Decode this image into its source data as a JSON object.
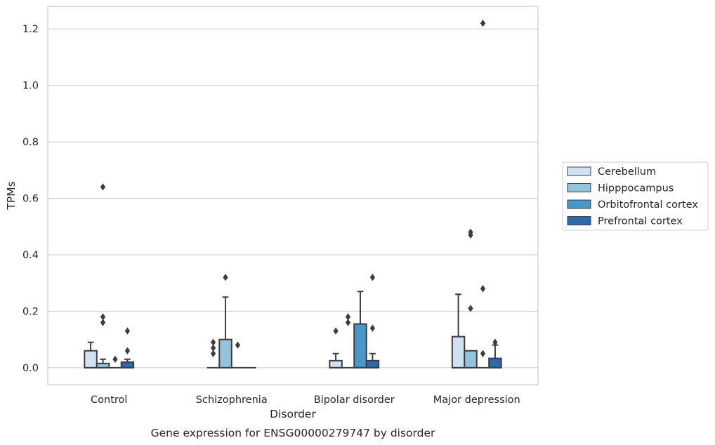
{
  "chart_data": {
    "type": "box",
    "title": "",
    "caption": "Gene expression for ENSG00000279747 by disorder",
    "xlabel": "Disorder",
    "ylabel": "TPMs",
    "ylim": [
      -0.06,
      1.28
    ],
    "yticks": [
      0.0,
      0.2,
      0.4,
      0.6,
      0.8,
      1.0,
      1.2
    ],
    "ytick_labels": [
      "0.0",
      "0.2",
      "0.4",
      "0.6",
      "0.8",
      "1.0",
      "1.2"
    ],
    "grid": "horizontal",
    "legend_position": "right",
    "categories": [
      "Control",
      "Schizophrenia",
      "Bipolar disorder",
      "Major depression"
    ],
    "series": [
      {
        "name": "Cerebellum",
        "color": "#cfe1f2",
        "boxes": [
          {
            "q1": 0.0,
            "median": 0.0,
            "q3": 0.06,
            "whisker_low": 0.0,
            "whisker_high": 0.09,
            "outliers": []
          },
          {
            "q1": 0.0,
            "median": 0.0,
            "q3": 0.0,
            "whisker_low": 0.0,
            "whisker_high": 0.0,
            "outliers": [
              0.05,
              0.07,
              0.09
            ]
          },
          {
            "q1": 0.0,
            "median": 0.0,
            "q3": 0.025,
            "whisker_low": 0.0,
            "whisker_high": 0.05,
            "outliers": [
              0.13
            ]
          },
          {
            "q1": 0.0,
            "median": 0.0,
            "q3": 0.11,
            "whisker_low": 0.0,
            "whisker_high": 0.26,
            "outliers": []
          }
        ]
      },
      {
        "name": "Hipppocampus",
        "color": "#93c4de",
        "boxes": [
          {
            "q1": 0.0,
            "median": 0.0,
            "q3": 0.015,
            "whisker_low": 0.0,
            "whisker_high": 0.03,
            "outliers": [
              0.16,
              0.18,
              0.64
            ]
          },
          {
            "q1": 0.0,
            "median": 0.0,
            "q3": 0.1,
            "whisker_low": 0.0,
            "whisker_high": 0.25,
            "outliers": [
              0.32
            ]
          },
          {
            "q1": 0.0,
            "median": 0.0,
            "q3": 0.0,
            "whisker_low": 0.0,
            "whisker_high": 0.0,
            "outliers": [
              0.16,
              0.18
            ]
          },
          {
            "q1": 0.0,
            "median": 0.0,
            "q3": 0.06,
            "whisker_low": 0.0,
            "whisker_high": 0.06,
            "outliers": [
              0.21,
              0.47,
              0.48
            ]
          }
        ]
      },
      {
        "name": "Orbitofrontal cortex",
        "color": "#4a98c9",
        "boxes": [
          {
            "q1": 0.0,
            "median": 0.0,
            "q3": 0.0,
            "whisker_low": 0.0,
            "whisker_high": 0.0,
            "outliers": [
              0.03
            ]
          },
          {
            "q1": 0.0,
            "median": 0.0,
            "q3": 0.0,
            "whisker_low": 0.0,
            "whisker_high": 0.0,
            "outliers": [
              0.08
            ]
          },
          {
            "q1": 0.0,
            "median": 0.0,
            "q3": 0.155,
            "whisker_low": 0.0,
            "whisker_high": 0.27,
            "outliers": []
          },
          {
            "q1": 0.0,
            "median": 0.0,
            "q3": 0.0,
            "whisker_low": 0.0,
            "whisker_high": 0.0,
            "outliers": [
              0.05,
              0.28,
              1.22
            ]
          }
        ]
      },
      {
        "name": "Prefrontal cortex",
        "color": "#2a6aad",
        "boxes": [
          {
            "q1": 0.0,
            "median": 0.0,
            "q3": 0.02,
            "whisker_low": 0.0,
            "whisker_high": 0.03,
            "outliers": [
              0.06,
              0.13
            ]
          },
          {
            "q1": 0.0,
            "median": 0.0,
            "q3": 0.0,
            "whisker_low": 0.0,
            "whisker_high": 0.0,
            "outliers": []
          },
          {
            "q1": 0.0,
            "median": 0.0,
            "q3": 0.025,
            "whisker_low": 0.0,
            "whisker_high": 0.05,
            "outliers": [
              0.14,
              0.32
            ]
          },
          {
            "q1": 0.0,
            "median": 0.0,
            "q3": 0.033,
            "whisker_low": 0.0,
            "whisker_high": 0.08,
            "outliers": [
              0.09
            ]
          }
        ]
      }
    ],
    "colors": {
      "grid": "#cccccc",
      "frame": "#cccccc",
      "box_edge": "#3d3d3d",
      "text": "#262626"
    }
  }
}
